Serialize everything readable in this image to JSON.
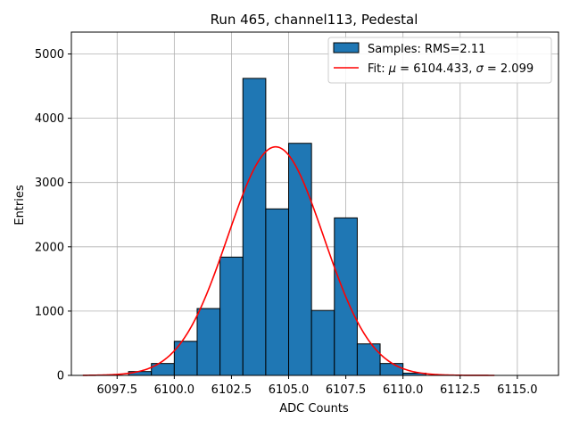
{
  "chart_data": {
    "type": "bar",
    "title": "Run 465, channel113, Pedestal",
    "xlabel": "ADC Counts",
    "ylabel": "Entries",
    "xlim": [
      6095.5,
      6116.8
    ],
    "ylim": [
      0,
      5340
    ],
    "grid": true,
    "legend_placement": "top-right",
    "bar_color": "#1f77b4",
    "fit_color": "#ff0000",
    "x_ticks": [
      6097.5,
      6100.0,
      6102.5,
      6105.0,
      6107.5,
      6110.0,
      6112.5,
      6115.0
    ],
    "x_tick_labels": [
      "6097.5",
      "6100.0",
      "6102.5",
      "6105.0",
      "6107.5",
      "6110.0",
      "6112.5",
      "6115.0"
    ],
    "y_ticks": [
      0,
      1000,
      2000,
      3000,
      4000,
      5000
    ],
    "y_tick_labels": [
      "0",
      "1000",
      "2000",
      "3000",
      "4000",
      "5000"
    ],
    "bins": [
      {
        "x0": 6098,
        "x1": 6099,
        "value": 60
      },
      {
        "x0": 6099,
        "x1": 6100,
        "value": 185
      },
      {
        "x0": 6100,
        "x1": 6101,
        "value": 530
      },
      {
        "x0": 6101,
        "x1": 6102,
        "value": 1040
      },
      {
        "x0": 6102,
        "x1": 6103,
        "value": 1840
      },
      {
        "x0": 6103,
        "x1": 6104,
        "value": 4620
      },
      {
        "x0": 6104,
        "x1": 6105,
        "value": 2590
      },
      {
        "x0": 6105,
        "x1": 6106,
        "value": 3610
      },
      {
        "x0": 6106,
        "x1": 6107,
        "value": 1010
      },
      {
        "x0": 6107,
        "x1": 6108,
        "value": 2450
      },
      {
        "x0": 6108,
        "x1": 6109,
        "value": 490
      },
      {
        "x0": 6109,
        "x1": 6110,
        "value": 185
      },
      {
        "x0": 6110,
        "x1": 6111,
        "value": 35
      }
    ],
    "fit": {
      "mu": 6104.433,
      "sigma": 2.099,
      "amplitude": 3555,
      "x_range": [
        6096,
        6114
      ]
    },
    "legend": [
      {
        "label": "Samples: RMS=2.11",
        "kind": "bar"
      },
      {
        "label_prefix": "Fit: ",
        "mu_symbol": "μ",
        "mu_text": " = 6104.433, ",
        "sigma_symbol": "σ",
        "sigma_text": " = 2.099",
        "kind": "line"
      }
    ]
  }
}
